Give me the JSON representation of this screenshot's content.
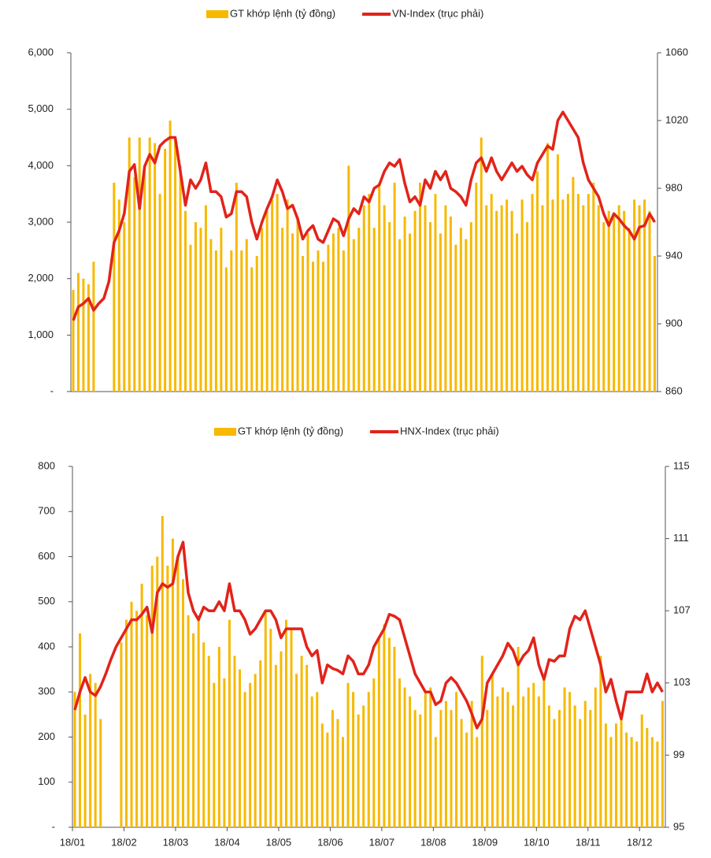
{
  "chart_data": [
    {
      "type": "combo",
      "series": [
        {
          "name": "GT khớp lệnh (tỷ đồng)",
          "color": "#f7b900",
          "kind": "bar",
          "values": [
            1800,
            2100,
            2000,
            1900,
            2300,
            null,
            null,
            null,
            3700,
            3400,
            3000,
            4500,
            3800,
            4500,
            4000,
            4500,
            4400,
            3500,
            4300,
            4800,
            4500,
            4000,
            3200,
            2600,
            3000,
            2900,
            3300,
            2700,
            2500,
            2900,
            2200,
            2500,
            3700,
            2500,
            2700,
            2200,
            2400,
            2900,
            3200,
            3400,
            3500,
            2900,
            3400,
            2800,
            3100,
            2400,
            2800,
            2300,
            2500,
            2300,
            2600,
            2800,
            2900,
            2500,
            4000,
            2700,
            2900,
            3300,
            3500,
            2900,
            3700,
            3300,
            3000,
            3700,
            2700,
            3100,
            2800,
            3200,
            3700,
            3300,
            3000,
            3500,
            2800,
            3300,
            3100,
            2600,
            2900,
            2700,
            3000,
            3700,
            4500,
            3300,
            3500,
            3200,
            3300,
            3400,
            3200,
            2800,
            3400,
            3000,
            3500,
            3900,
            3300,
            4400,
            3400,
            4200,
            3400,
            3500,
            3800,
            3500,
            3300,
            3500,
            3700,
            3300,
            3000,
            3200,
            3100,
            3300,
            3200,
            2900,
            3400,
            3300,
            3400,
            3200,
            2400
          ]
        },
        {
          "name": "VN-Index  (trục phải)",
          "color": "#e2231a",
          "kind": "line",
          "axis": "y2",
          "values": [
            902,
            910,
            912,
            915,
            908,
            912,
            915,
            925,
            948,
            955,
            965,
            990,
            994,
            968,
            993,
            1000,
            995,
            1005,
            1008,
            1010,
            1010,
            990,
            970,
            985,
            980,
            985,
            995,
            978,
            978,
            975,
            963,
            965,
            978,
            978,
            975,
            960,
            950,
            960,
            968,
            975,
            985,
            978,
            968,
            970,
            962,
            950,
            955,
            958,
            950,
            948,
            955,
            962,
            960,
            952,
            962,
            968,
            965,
            975,
            972,
            980,
            982,
            990,
            995,
            993,
            997,
            983,
            972,
            975,
            970,
            985,
            980,
            990,
            985,
            990,
            980,
            978,
            975,
            970,
            985,
            995,
            998,
            990,
            998,
            990,
            985,
            990,
            995,
            990,
            993,
            988,
            985,
            995,
            1000,
            1005,
            1003,
            1020,
            1025,
            1020,
            1015,
            1010,
            995,
            985,
            980,
            975,
            965,
            958,
            965,
            962,
            958,
            955,
            950,
            957,
            958,
            965,
            960
          ]
        }
      ],
      "ylim": [
        0,
        6000
      ],
      "yticks": [
        {
          "value": 0,
          "label": "-"
        },
        {
          "value": 1000,
          "label": "1,000"
        },
        {
          "value": 2000,
          "label": "2,000"
        },
        {
          "value": 3000,
          "label": "3,000"
        },
        {
          "value": 4000,
          "label": "4,000"
        },
        {
          "value": 5000,
          "label": "5,000"
        },
        {
          "value": 6000,
          "label": "6,000"
        }
      ],
      "y2lim": [
        860,
        1060
      ],
      "y2ticks": [
        860,
        900,
        940,
        980,
        1020,
        1060
      ]
    },
    {
      "type": "combo",
      "categories": [
        "18/01",
        null,
        null,
        null,
        null,
        null,
        null,
        null,
        null,
        null,
        "18/02",
        null,
        null,
        null,
        null,
        null,
        null,
        null,
        null,
        null,
        "18/03",
        null,
        null,
        null,
        null,
        null,
        null,
        null,
        null,
        null,
        "18/04",
        null,
        null,
        null,
        null,
        null,
        null,
        null,
        null,
        null,
        "18/05",
        null,
        null,
        null,
        null,
        null,
        null,
        null,
        null,
        null,
        "18/06",
        null,
        null,
        null,
        null,
        null,
        null,
        null,
        null,
        null,
        "18/07",
        null,
        null,
        null,
        null,
        null,
        null,
        null,
        null,
        null,
        "18/08",
        null,
        null,
        null,
        null,
        null,
        null,
        null,
        null,
        null,
        "18/09",
        null,
        null,
        null,
        null,
        null,
        null,
        null,
        null,
        null,
        "18/10",
        null,
        null,
        null,
        null,
        null,
        null,
        null,
        null,
        null,
        "18/11",
        null,
        null,
        null,
        null,
        null,
        null,
        null,
        null,
        null,
        "18/12",
        null,
        null,
        null,
        null
      ],
      "series": [
        {
          "name": "GT khớp lệnh (tỷ đồng)",
          "color": "#f7b900",
          "kind": "bar",
          "values": [
            300,
            430,
            250,
            340,
            320,
            240,
            null,
            null,
            null,
            410,
            460,
            500,
            480,
            540,
            470,
            580,
            600,
            690,
            580,
            640,
            600,
            550,
            470,
            430,
            470,
            410,
            380,
            320,
            400,
            330,
            460,
            380,
            350,
            300,
            320,
            340,
            370,
            480,
            440,
            360,
            390,
            460,
            440,
            340,
            380,
            360,
            290,
            300,
            230,
            210,
            260,
            240,
            200,
            320,
            300,
            250,
            270,
            300,
            330,
            420,
            450,
            420,
            400,
            330,
            310,
            290,
            260,
            250,
            300,
            310,
            200,
            260,
            280,
            260,
            300,
            240,
            210,
            280,
            200,
            380,
            260,
            340,
            290,
            310,
            300,
            270,
            400,
            290,
            310,
            320,
            290,
            330,
            270,
            240,
            260,
            310,
            300,
            270,
            240,
            280,
            260,
            310,
            380,
            230,
            200,
            230,
            240,
            210,
            200,
            190,
            250,
            220,
            200,
            190,
            280
          ]
        },
        {
          "name": "HNX-Index  (trục phải)",
          "color": "#e2231a",
          "kind": "line",
          "axis": "y2",
          "values": [
            101.5,
            102.5,
            103.3,
            102.5,
            102.3,
            102.8,
            103.5,
            104.3,
            105,
            105.5,
            106,
            106.5,
            106.5,
            106.8,
            107.2,
            105.8,
            108,
            108.5,
            108.3,
            108.5,
            110,
            110.8,
            108,
            107,
            106.5,
            107.2,
            107,
            107,
            107.5,
            107,
            108.5,
            107,
            107,
            106.5,
            105.7,
            106,
            106.5,
            107,
            107,
            106.5,
            105.5,
            106,
            106,
            106,
            106,
            105,
            104.5,
            104.8,
            103,
            104,
            103.8,
            103.7,
            103.5,
            104.5,
            104.2,
            103.5,
            103.5,
            104,
            105,
            105.5,
            106,
            106.8,
            106.7,
            106.5,
            105.5,
            104.5,
            103.5,
            103,
            102.5,
            102.5,
            101.8,
            102,
            103,
            103.3,
            103,
            102.5,
            102,
            101.3,
            100.5,
            101,
            103,
            103.5,
            104,
            104.5,
            105.2,
            104.8,
            104,
            104.5,
            104.8,
            105.5,
            104,
            103.2,
            104.3,
            104.2,
            104.5,
            104.5,
            106,
            106.7,
            106.5,
            107,
            106,
            105,
            104,
            102.5,
            103.2,
            102,
            101,
            102.5,
            102.5,
            102.5,
            102.5,
            103.5,
            102.5,
            103,
            102.5
          ]
        }
      ],
      "ylim": [
        0,
        800
      ],
      "yticks": [
        {
          "value": 0,
          "label": "-"
        },
        100,
        200,
        300,
        400,
        500,
        600,
        700,
        800
      ],
      "y2lim": [
        95,
        115
      ],
      "y2ticks": [
        95,
        99,
        103,
        107,
        111,
        115
      ]
    }
  ]
}
